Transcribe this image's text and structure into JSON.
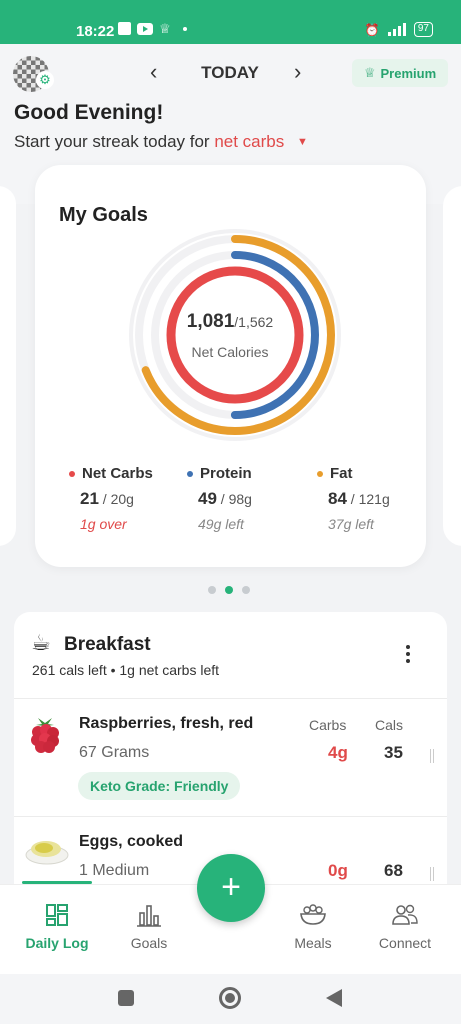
{
  "status_bar": {
    "time": "18:22",
    "battery": "97"
  },
  "header": {
    "date_label": "TODAY",
    "prev_icon": "chevron-left-icon",
    "next_icon": "chevron-right-icon",
    "premium_label": "Premium",
    "greeting": "Good Evening!",
    "streak_text": "Start your streak today for",
    "streak_metric": "net carbs"
  },
  "goals": {
    "title": "My Goals",
    "calories_value": "1,081",
    "calories_total": "/1,562",
    "calories_label": "Net Calories",
    "rings": [
      {
        "name": "Net Carbs",
        "fraction": 1.0,
        "color": "#e64a4a"
      },
      {
        "name": "Protein",
        "fraction": 0.5,
        "color": "#3f72b3"
      },
      {
        "name": "Fat",
        "fraction": 0.69,
        "color": "#e89d2c"
      },
      {
        "name": "Calories",
        "fraction": 0.69,
        "color": "#f0f0f2"
      }
    ],
    "macros": [
      {
        "name": "Net Carbs",
        "color": "#e64a4a",
        "value": "21",
        "goal": " / 20g",
        "note": "1g over"
      },
      {
        "name": "Protein",
        "color": "#3f72b3",
        "value": "49",
        "goal": " / 98g",
        "note": "49g left"
      },
      {
        "name": "Fat",
        "color": "#e89d2c",
        "value": "84",
        "goal": " / 121g",
        "note": "37g left"
      }
    ],
    "page_index": 1,
    "page_count": 3
  },
  "meal": {
    "title": "Breakfast",
    "summary": "261 cals left • 1g net carbs left",
    "col_carbs": "Carbs",
    "col_cals": "Cals",
    "foods": [
      {
        "name": "Raspberries, fresh, red",
        "quantity": "67 Grams",
        "grade": "Keto Grade: Friendly",
        "carbs": "4g",
        "cals": "35"
      },
      {
        "name": "Eggs, cooked",
        "quantity": "1 Medium",
        "carbs": "0g",
        "cals": "68"
      }
    ]
  },
  "nav": {
    "items": [
      {
        "label": "Daily Log",
        "icon": "daily-log-icon",
        "active": true
      },
      {
        "label": "Goals",
        "icon": "bar-chart-icon",
        "active": false
      },
      {
        "label": "Meals",
        "icon": "salad-bowl-icon",
        "active": false
      },
      {
        "label": "Connect",
        "icon": "people-icon",
        "active": false
      }
    ],
    "fab_label": "+"
  }
}
